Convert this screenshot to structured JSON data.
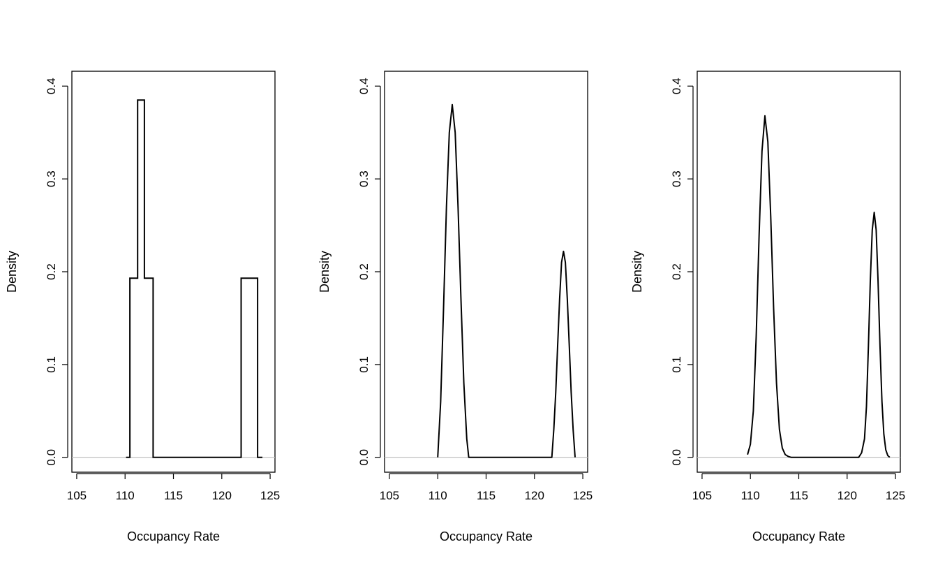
{
  "colors": {
    "curve": "#000000",
    "baseline": "#bfbfbf",
    "frame": "#000000",
    "background": "#ffffff"
  },
  "chart_data": [
    {
      "type": "line",
      "style": "step",
      "xlabel": "Occupancy Rate",
      "ylabel": "Density",
      "xlim": [
        104.5,
        125.5
      ],
      "ylim": [
        -0.016,
        0.416
      ],
      "xticks": [
        105,
        110,
        115,
        120,
        125
      ],
      "yticks": [
        0.0,
        0.1,
        0.2,
        0.3,
        0.4
      ],
      "grid": false,
      "baseline_range": [
        104.5,
        125.5
      ],
      "x": [
        110.1,
        110.5,
        110.5,
        111.3,
        111.3,
        112.0,
        112.0,
        112.9,
        112.9,
        122.0,
        122.0,
        123.7,
        123.7,
        124.2
      ],
      "y": [
        0.0,
        0.0,
        0.193,
        0.193,
        0.385,
        0.385,
        0.193,
        0.193,
        0.0,
        0.0,
        0.193,
        0.193,
        0.0,
        0.0
      ]
    },
    {
      "type": "line",
      "style": "curve",
      "xlabel": "Occupancy Rate",
      "ylabel": "Density",
      "xlim": [
        104.5,
        125.5
      ],
      "ylim": [
        -0.016,
        0.416
      ],
      "xticks": [
        105,
        110,
        115,
        120,
        125
      ],
      "yticks": [
        0.0,
        0.1,
        0.2,
        0.3,
        0.4
      ],
      "grid": false,
      "baseline_range": [
        104.5,
        125.5
      ],
      "x": [
        110.0,
        110.3,
        110.6,
        110.9,
        111.2,
        111.5,
        111.8,
        112.1,
        112.4,
        112.7,
        113.0,
        113.2,
        121.8,
        122.0,
        122.2,
        122.4,
        122.6,
        122.8,
        123.0,
        123.2,
        123.4,
        123.6,
        123.8,
        124.0,
        124.2
      ],
      "y": [
        0.0,
        0.06,
        0.16,
        0.27,
        0.35,
        0.38,
        0.35,
        0.27,
        0.17,
        0.08,
        0.02,
        0.0,
        0.0,
        0.03,
        0.07,
        0.12,
        0.17,
        0.21,
        0.222,
        0.21,
        0.17,
        0.12,
        0.07,
        0.03,
        0.0
      ]
    },
    {
      "type": "line",
      "style": "curve",
      "xlabel": "Occupancy Rate",
      "ylabel": "Density",
      "xlim": [
        104.5,
        125.5
      ],
      "ylim": [
        -0.016,
        0.416
      ],
      "xticks": [
        105,
        110,
        115,
        120,
        125
      ],
      "yticks": [
        0.0,
        0.1,
        0.2,
        0.3,
        0.4
      ],
      "grid": false,
      "baseline_range": [
        104.5,
        125.5
      ],
      "x": [
        109.7,
        110.0,
        110.3,
        110.6,
        110.9,
        111.2,
        111.5,
        111.8,
        112.1,
        112.4,
        112.7,
        113.0,
        113.3,
        113.6,
        113.9,
        114.2,
        121.2,
        121.5,
        121.8,
        122.0,
        122.2,
        122.4,
        122.6,
        122.8,
        123.0,
        123.2,
        123.4,
        123.6,
        123.8,
        124.0,
        124.2,
        124.4
      ],
      "y": [
        0.003,
        0.014,
        0.05,
        0.13,
        0.24,
        0.33,
        0.368,
        0.34,
        0.26,
        0.16,
        0.08,
        0.03,
        0.01,
        0.003,
        0.001,
        0.0,
        0.0,
        0.005,
        0.02,
        0.055,
        0.12,
        0.19,
        0.245,
        0.264,
        0.245,
        0.19,
        0.12,
        0.06,
        0.025,
        0.008,
        0.002,
        0.0
      ]
    }
  ]
}
